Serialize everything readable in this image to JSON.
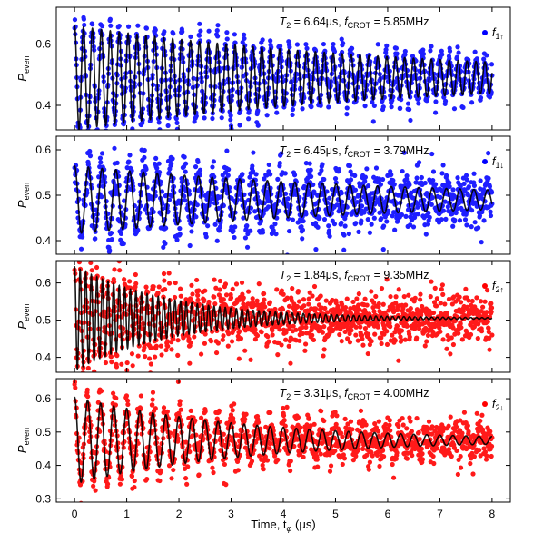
{
  "chart_data": [
    {
      "type": "scatter",
      "ylabel": "P",
      "ylabel_sub": "even",
      "ylim": [
        0.32,
        0.72
      ],
      "yticks": [
        0.4,
        0.6
      ],
      "ytick_labels": [
        "0.4",
        "0.6"
      ],
      "annotation": {
        "t2": "6.64μs",
        "fcrot": "5.85MHz"
      },
      "legend": {
        "sym": "f",
        "sub": "1↑",
        "color": "#0000ff",
        "position": "top-right"
      },
      "series": [
        {
          "kind": "points",
          "color": "#1f1fff",
          "model": {
            "A": 0.17,
            "decay_us": 6.64,
            "freq_mhz": 5.85,
            "baseline": 0.49,
            "noise": 0.025
          }
        },
        {
          "kind": "fit",
          "color": "#000000",
          "model": {
            "A": 0.17,
            "decay_us": 6.64,
            "freq_mhz": 5.85,
            "baseline": 0.49
          }
        }
      ]
    },
    {
      "type": "scatter",
      "ylabel": "P",
      "ylabel_sub": "even",
      "ylim": [
        0.37,
        0.63
      ],
      "yticks": [
        0.4,
        0.5,
        0.6
      ],
      "ytick_labels": [
        "0.4",
        "0.5",
        "0.6"
      ],
      "annotation": {
        "t2": "6.45μs",
        "fcrot": "3.79MHz"
      },
      "legend": {
        "sym": "f",
        "sub": "1↓",
        "color": "#0000ff",
        "position": "top-right"
      },
      "series": [
        {
          "kind": "points",
          "color": "#1f1fff",
          "model": {
            "A": 0.075,
            "decay_us": 6.45,
            "freq_mhz": 3.79,
            "baseline": 0.49,
            "noise": 0.028
          }
        },
        {
          "kind": "fit",
          "color": "#000000",
          "model": {
            "A": 0.075,
            "decay_us": 6.45,
            "freq_mhz": 3.79,
            "baseline": 0.49
          }
        }
      ]
    },
    {
      "type": "scatter",
      "ylabel": "P",
      "ylabel_sub": "even",
      "ylim": [
        0.36,
        0.66
      ],
      "yticks": [
        0.4,
        0.5,
        0.6
      ],
      "ytick_labels": [
        "0.4",
        "0.5",
        "0.6"
      ],
      "annotation": {
        "t2": "1.84μs",
        "fcrot": "9.35MHz"
      },
      "legend": {
        "sym": "f",
        "sub": "2↑",
        "color": "#ff0000",
        "position": "top-right"
      },
      "series": [
        {
          "kind": "points",
          "color": "#ff1a1a",
          "model": {
            "A": 0.14,
            "decay_us": 1.84,
            "freq_mhz": 9.35,
            "baseline": 0.505,
            "noise": 0.035
          }
        },
        {
          "kind": "fit",
          "color": "#000000",
          "model": {
            "A": 0.14,
            "decay_us": 1.84,
            "freq_mhz": 9.35,
            "baseline": 0.505
          }
        }
      ]
    },
    {
      "type": "scatter",
      "ylabel": "P",
      "ylabel_sub": "even",
      "ylim": [
        0.29,
        0.66
      ],
      "yticks": [
        0.3,
        0.4,
        0.5,
        0.6
      ],
      "ytick_labels": [
        "0.3",
        "0.4",
        "0.5",
        "0.6"
      ],
      "annotation": {
        "t2": "3.31μs",
        "fcrot": "4.00MHz"
      },
      "legend": {
        "sym": "f",
        "sub": "2↓",
        "color": "#ff0000",
        "position": "top-right"
      },
      "series": [
        {
          "kind": "points",
          "color": "#ff1a1a",
          "model": {
            "A": 0.13,
            "decay_us": 3.31,
            "freq_mhz": 4.0,
            "baseline": 0.475,
            "noise": 0.03
          }
        },
        {
          "kind": "fit",
          "color": "#000000",
          "model": {
            "A": 0.13,
            "decay_us": 3.31,
            "freq_mhz": 4.0,
            "baseline": 0.475
          }
        }
      ]
    }
  ],
  "x_axis": {
    "label": "Time, t",
    "label_sub": "φ",
    "unit": "(μs)",
    "xlim": [
      -0.35,
      8.35
    ],
    "ticks": [
      0,
      1,
      2,
      3,
      4,
      5,
      6,
      7,
      8
    ],
    "tick_labels": [
      "0",
      "1",
      "2",
      "3",
      "4",
      "5",
      "6",
      "7",
      "8"
    ]
  }
}
